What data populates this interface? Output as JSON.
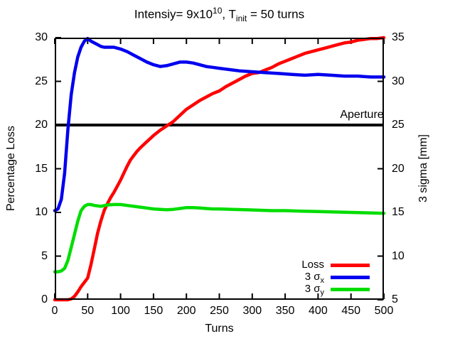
{
  "figure": {
    "title": {
      "prefix": "Intensiy= 9x10",
      "sup": "10",
      "mid": ", T",
      "sub": "init",
      "suffix": " = 50 turns"
    },
    "background": "#ffffff"
  },
  "chart_data": {
    "type": "line",
    "title": "Intensiy= 9x10^10, T_init = 50 turns",
    "xlabel": "Turns",
    "ylabel_left": "Percentage Loss",
    "ylabel_right": "3 sigma [mm]",
    "xlim": [
      0,
      500
    ],
    "ylim_left": [
      0,
      30
    ],
    "ylim_right": [
      5,
      35
    ],
    "x_ticks": [
      0,
      50,
      100,
      150,
      200,
      250,
      300,
      350,
      400,
      450,
      500
    ],
    "y_ticks_left": [
      0,
      5,
      10,
      15,
      20,
      25,
      30
    ],
    "y_ticks_right": [
      5,
      10,
      15,
      20,
      25,
      30,
      35
    ],
    "grid": false,
    "legend_position": "inside-bottom-right",
    "annotation": {
      "label": "Aperture",
      "axis": "left",
      "value": 20,
      "color": "#000000"
    },
    "series": [
      {
        "key": "loss",
        "name": "Loss",
        "legend_text": "Loss",
        "legend_sub": "",
        "axis": "left",
        "color": "#ff0000",
        "x": [
          0,
          10,
          20,
          25,
          30,
          35,
          40,
          45,
          50,
          55,
          60,
          65,
          70,
          75,
          80,
          85,
          90,
          95,
          100,
          105,
          110,
          115,
          120,
          125,
          130,
          140,
          150,
          160,
          170,
          180,
          190,
          200,
          210,
          220,
          230,
          240,
          250,
          260,
          270,
          280,
          290,
          300,
          310,
          320,
          330,
          340,
          350,
          360,
          370,
          380,
          390,
          400,
          410,
          420,
          430,
          440,
          450,
          460,
          470,
          480,
          490,
          500
        ],
        "y": [
          0,
          0,
          0,
          0.1,
          0.4,
          0.9,
          1.5,
          2.0,
          2.5,
          4.0,
          5.8,
          7.6,
          9.0,
          10.2,
          11.0,
          11.7,
          12.3,
          13.0,
          13.7,
          14.5,
          15.3,
          16.0,
          16.5,
          17.0,
          17.4,
          18.1,
          18.8,
          19.4,
          19.9,
          20.4,
          21.1,
          21.8,
          22.3,
          22.8,
          23.2,
          23.6,
          23.9,
          24.4,
          24.8,
          25.2,
          25.6,
          25.9,
          26.0,
          26.3,
          26.6,
          27.0,
          27.3,
          27.6,
          27.9,
          28.2,
          28.4,
          28.6,
          28.8,
          29.0,
          29.2,
          29.4,
          29.5,
          29.7,
          29.8,
          29.9,
          29.9,
          30.0
        ]
      },
      {
        "key": "sigma-x",
        "name": "3 sigma_x",
        "legend_text": "3 σ",
        "legend_sub": "x",
        "axis": "right",
        "color": "#0000ee",
        "x": [
          0,
          5,
          10,
          15,
          20,
          25,
          30,
          35,
          40,
          45,
          48,
          50,
          55,
          60,
          65,
          70,
          75,
          80,
          85,
          90,
          95,
          100,
          110,
          120,
          130,
          140,
          150,
          160,
          170,
          180,
          190,
          200,
          210,
          220,
          230,
          240,
          250,
          260,
          270,
          280,
          300,
          320,
          340,
          360,
          380,
          400,
          420,
          440,
          460,
          480,
          500
        ],
        "y": [
          15.2,
          15.4,
          16.5,
          19.5,
          24.5,
          28.5,
          31.0,
          32.8,
          33.9,
          34.6,
          34.8,
          34.9,
          34.6,
          34.4,
          34.2,
          34.0,
          33.9,
          33.9,
          33.9,
          33.9,
          33.8,
          33.7,
          33.4,
          33.0,
          32.6,
          32.2,
          31.9,
          31.7,
          31.8,
          32.0,
          32.2,
          32.2,
          32.1,
          31.9,
          31.7,
          31.6,
          31.5,
          31.4,
          31.3,
          31.2,
          31.1,
          31.0,
          30.9,
          30.8,
          30.7,
          30.8,
          30.7,
          30.6,
          30.6,
          30.5,
          30.5
        ]
      },
      {
        "key": "sigma-y",
        "name": "3 sigma_y",
        "legend_text": "3 σ",
        "legend_sub": "y",
        "axis": "right",
        "color": "#00dd00",
        "x": [
          0,
          5,
          10,
          15,
          20,
          25,
          30,
          35,
          40,
          45,
          50,
          55,
          60,
          70,
          80,
          90,
          100,
          110,
          120,
          130,
          140,
          150,
          160,
          170,
          180,
          190,
          200,
          210,
          220,
          230,
          240,
          250,
          270,
          290,
          310,
          330,
          350,
          375,
          400,
          425,
          450,
          475,
          500
        ],
        "y": [
          8.2,
          8.2,
          8.3,
          8.6,
          9.5,
          11.0,
          12.5,
          14.0,
          15.2,
          15.7,
          15.9,
          15.9,
          15.8,
          15.7,
          15.85,
          15.9,
          15.9,
          15.8,
          15.7,
          15.6,
          15.5,
          15.4,
          15.35,
          15.3,
          15.35,
          15.45,
          15.55,
          15.55,
          15.5,
          15.45,
          15.4,
          15.4,
          15.35,
          15.3,
          15.25,
          15.2,
          15.2,
          15.15,
          15.1,
          15.05,
          15.0,
          14.95,
          14.9
        ]
      }
    ]
  }
}
